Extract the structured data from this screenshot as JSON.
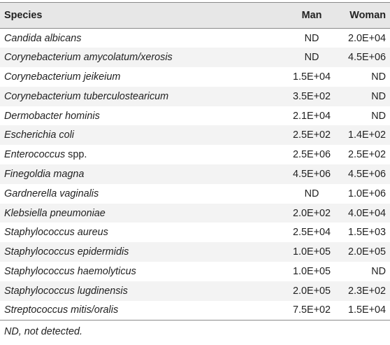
{
  "table": {
    "headers": {
      "species": "Species",
      "man": "Man",
      "woman": "Woman"
    },
    "rows": [
      {
        "species": "Candida albicans",
        "species_suffix": "",
        "man": "ND",
        "woman": "2.0E+04"
      },
      {
        "species": "Corynebacterium amycolatum/xerosis",
        "species_suffix": "",
        "man": "ND",
        "woman": "4.5E+06"
      },
      {
        "species": "Corynebacterium jeikeium",
        "species_suffix": "",
        "man": "1.5E+04",
        "woman": "ND"
      },
      {
        "species": "Corynebacterium tuberculostearicum",
        "species_suffix": "",
        "man": "3.5E+02",
        "woman": "ND"
      },
      {
        "species": "Dermobacter hominis",
        "species_suffix": "",
        "man": "2.1E+04",
        "woman": "ND"
      },
      {
        "species": "Escherichia coli",
        "species_suffix": "",
        "man": "2.5E+02",
        "woman": "1.4E+02"
      },
      {
        "species": "Enterococcus",
        "species_suffix": " spp.",
        "man": "2.5E+06",
        "woman": "2.5E+02"
      },
      {
        "species": "Finegoldia magna",
        "species_suffix": "",
        "man": "4.5E+06",
        "woman": "4.5E+06"
      },
      {
        "species": "Gardnerella vaginalis",
        "species_suffix": "",
        "man": "ND",
        "woman": "1.0E+06"
      },
      {
        "species": "Klebsiella pneumoniae",
        "species_suffix": "",
        "man": "2.0E+02",
        "woman": "4.0E+04"
      },
      {
        "species": "Staphylococcus aureus",
        "species_suffix": "",
        "man": "2.5E+04",
        "woman": "1.5E+03"
      },
      {
        "species": "Staphylococcus epidermidis",
        "species_suffix": "",
        "man": "1.0E+05",
        "woman": "2.0E+05"
      },
      {
        "species": "Staphylococcus haemolyticus",
        "species_suffix": "",
        "man": "1.0E+05",
        "woman": "ND"
      },
      {
        "species": "Staphylococcus lugdinensis",
        "species_suffix": "",
        "man": "2.0E+05",
        "woman": "2.3E+02"
      },
      {
        "species": "Streptococcus mitis/oralis",
        "species_suffix": "",
        "man": "7.5E+02",
        "woman": "1.5E+04"
      }
    ]
  },
  "footnote": "ND, not detected.",
  "colors": {
    "header_bg": "#e7e7e7",
    "alt_row_bg": "#f3f3f3",
    "rule": "#8a8a8a",
    "text": "#222222"
  }
}
